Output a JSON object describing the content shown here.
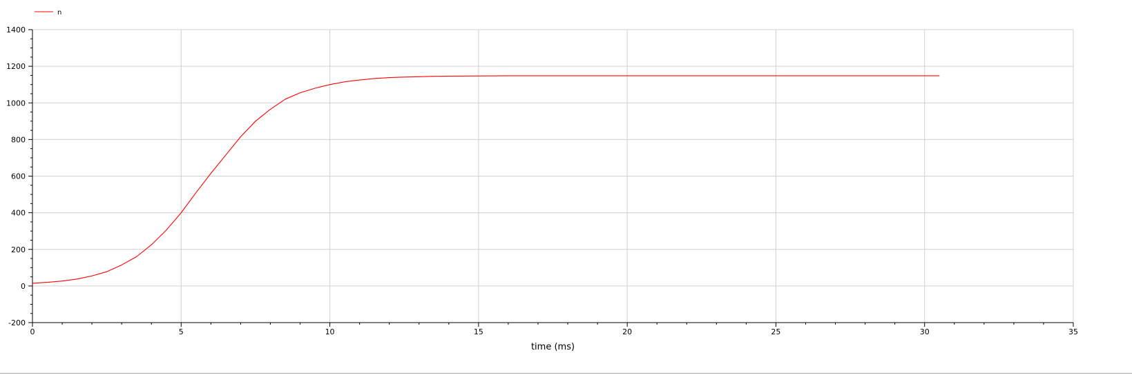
{
  "chart_data": {
    "type": "line",
    "title": "",
    "xlabel": "time (ms)",
    "ylabel": "",
    "xlim": [
      0,
      35
    ],
    "ylim": [
      -200,
      1400
    ],
    "x_major_ticks": [
      0,
      5,
      10,
      15,
      20,
      25,
      30,
      35
    ],
    "x_tick_labels": [
      "0",
      "5",
      "10",
      "15",
      "20",
      "25",
      "30",
      "35"
    ],
    "y_major_ticks": [
      -200,
      0,
      200,
      400,
      600,
      800,
      1000,
      1200,
      1400
    ],
    "y_tick_labels": [
      "-200",
      "0",
      "200",
      "400",
      "600",
      "800",
      "1000",
      "1200",
      "1400"
    ],
    "grid": true,
    "legend_position": "top-left",
    "series": [
      {
        "name": "n",
        "color": "#ff0000",
        "x": [
          0,
          0.5,
          1,
          1.5,
          2,
          2.5,
          3,
          3.5,
          4,
          4.5,
          5,
          5.5,
          6,
          6.5,
          7,
          7.5,
          8,
          8.5,
          9,
          9.5,
          10,
          10.5,
          11,
          11.5,
          12,
          12.5,
          13,
          13.5,
          14,
          15,
          16,
          18,
          20,
          22,
          25,
          28,
          30.5
        ],
        "y": [
          15,
          20,
          27,
          38,
          55,
          78,
          115,
          160,
          225,
          305,
          400,
          510,
          615,
          715,
          815,
          900,
          965,
          1020,
          1055,
          1080,
          1100,
          1115,
          1125,
          1133,
          1138,
          1141,
          1143,
          1145,
          1146,
          1147,
          1148,
          1148,
          1148,
          1148,
          1148,
          1148,
          1148
        ]
      }
    ]
  }
}
